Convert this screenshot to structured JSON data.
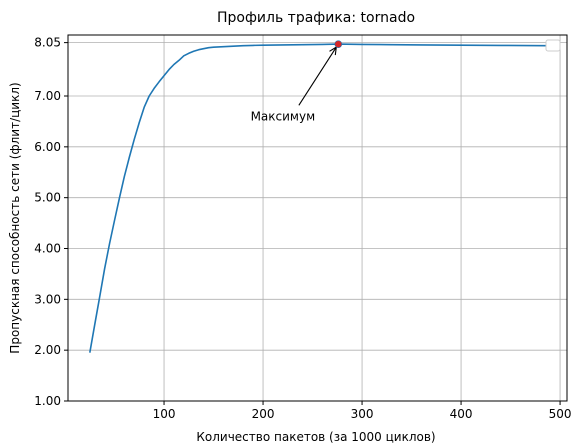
{
  "chart_data": {
    "type": "line",
    "title": "Профиль трафика: tornado",
    "xlabel": "Количество пакетов (за 1000 циклов)",
    "ylabel": "Пропускная способность сети (флит/цикл)",
    "xlim": [
      3,
      507
    ],
    "ylim": [
      1.0,
      8.2
    ],
    "xticks": [
      100,
      200,
      300,
      400,
      500
    ],
    "xtick_labels": [
      "100",
      "200",
      "300",
      "400",
      "500"
    ],
    "yticks": [
      1.0,
      2.0,
      3.0,
      4.0,
      5.0,
      6.0,
      7.0,
      8.05
    ],
    "ytick_labels": [
      "1.00",
      "2.00",
      "3.00",
      "4.00",
      "5.00",
      "6.00",
      "7.00",
      "8.05"
    ],
    "grid": true,
    "legend": "top-right (empty)",
    "series": [
      {
        "color": "#1f77b4",
        "x": [
          25,
          30,
          35,
          40,
          45,
          50,
          55,
          60,
          65,
          70,
          75,
          80,
          85,
          90,
          95,
          100,
          105,
          110,
          115,
          120,
          125,
          130,
          135,
          140,
          145,
          150,
          160,
          170,
          180,
          190,
          200,
          220,
          240,
          260,
          276,
          300,
          330,
          360,
          400,
          440,
          486
        ],
        "y": [
          1.95,
          2.5,
          3.05,
          3.6,
          4.1,
          4.55,
          5.0,
          5.42,
          5.8,
          6.15,
          6.48,
          6.78,
          7.0,
          7.15,
          7.28,
          7.4,
          7.52,
          7.62,
          7.7,
          7.79,
          7.84,
          7.88,
          7.91,
          7.93,
          7.95,
          7.96,
          7.97,
          7.98,
          7.99,
          7.995,
          8.0,
          8.005,
          8.01,
          8.015,
          8.02,
          8.015,
          8.01,
          8.005,
          8.0,
          7.995,
          7.99
        ]
      }
    ],
    "marker": {
      "x": 276,
      "y": 8.02,
      "color": "#d62728"
    },
    "annotation": {
      "text": "Максимум",
      "text_x": 220,
      "text_y": 6.6,
      "target_x": 276,
      "target_y": 8.02
    }
  }
}
